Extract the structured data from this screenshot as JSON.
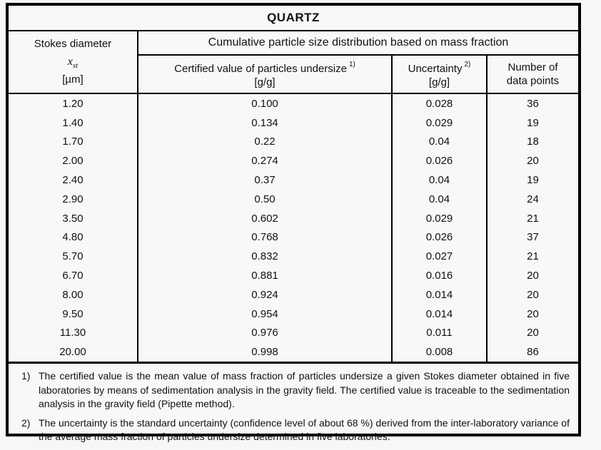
{
  "title": "QUARTZ",
  "table": {
    "stokes": {
      "label": "Stokes diameter",
      "symbol_base": "x",
      "symbol_sub": "st",
      "unit": "[µm]"
    },
    "group_header": "Cumulative particle size distribution based on mass fraction",
    "certified": {
      "label": "Certified value of particles undersize",
      "footnote_ref": "1)",
      "unit": "[g/g]"
    },
    "uncertainty": {
      "label": "Uncertainty",
      "footnote_ref": "2)",
      "unit": "[g/g]"
    },
    "datapoints": {
      "line1": "Number of",
      "line2": "data points"
    },
    "rows": [
      [
        "1.20",
        "0.100",
        "0.028",
        "36"
      ],
      [
        "1.40",
        "0.134",
        "0.029",
        "19"
      ],
      [
        "1.70",
        "0.22",
        "0.04",
        "18"
      ],
      [
        "2.00",
        "0.274",
        "0.026",
        "20"
      ],
      [
        "2.40",
        "0.37",
        "0.04",
        "19"
      ],
      [
        "2.90",
        "0.50",
        "0.04",
        "24"
      ],
      [
        "3.50",
        "0.602",
        "0.029",
        "21"
      ],
      [
        "4.80",
        "0.768",
        "0.026",
        "37"
      ],
      [
        "5.70",
        "0.832",
        "0.027",
        "21"
      ],
      [
        "6.70",
        "0.881",
        "0.016",
        "20"
      ],
      [
        "8.00",
        "0.924",
        "0.014",
        "20"
      ],
      [
        "9.50",
        "0.954",
        "0.014",
        "20"
      ],
      [
        "11.30",
        "0.976",
        "0.011",
        "20"
      ],
      [
        "20.00",
        "0.998",
        "0.008",
        "86"
      ]
    ]
  },
  "footnotes": [
    {
      "marker": "1)",
      "text": "The certified value is the mean value of mass fraction of particles undersize a given Stokes diameter obtained in five laboratories by means of sedimentation analysis in the gravity field. The certified value is traceable to the sedimentation analysis in the gravity field (Pipette method)."
    },
    {
      "marker": "2)",
      "text": "The uncertainty is the standard uncertainty (confidence level of about 68 %) derived from the inter-laboratory variance of the average mass fraction of particles undersize determined in five laboratories."
    }
  ],
  "colors": {
    "border": "#000000",
    "background": "#f7f7f7",
    "text": "#111111"
  }
}
